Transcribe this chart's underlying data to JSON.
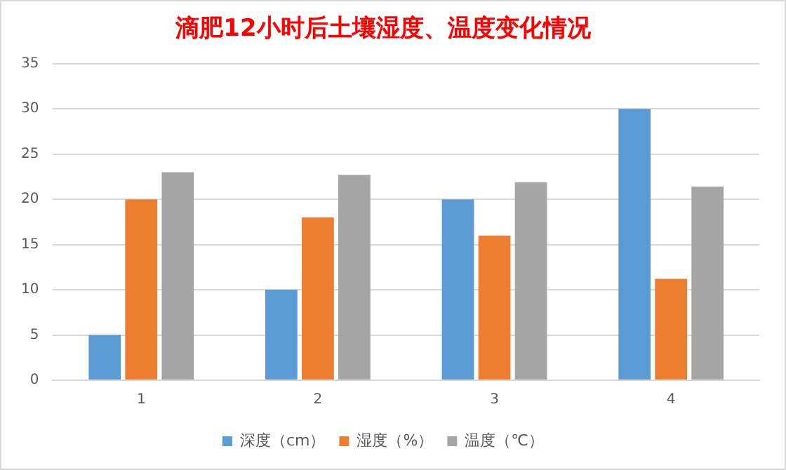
{
  "chart_data": {
    "type": "bar",
    "title": "滴肥12小时后土壤湿度、温度变化情况",
    "categories": [
      "1",
      "2",
      "3",
      "4"
    ],
    "series": [
      {
        "name": "深度（cm）",
        "color": "#5b9bd5",
        "values": [
          5,
          10,
          20,
          30
        ]
      },
      {
        "name": "湿度（%）",
        "color": "#ed7d31",
        "values": [
          20,
          18,
          16,
          11.2
        ]
      },
      {
        "name": "温度（℃）",
        "color": "#a5a5a5",
        "values": [
          23,
          22.7,
          21.9,
          21.4
        ]
      }
    ],
    "ylim": [
      0,
      35
    ],
    "yticks": [
      0,
      5,
      10,
      15,
      20,
      25,
      30,
      35
    ],
    "grid": "y",
    "legend": "bottom"
  }
}
